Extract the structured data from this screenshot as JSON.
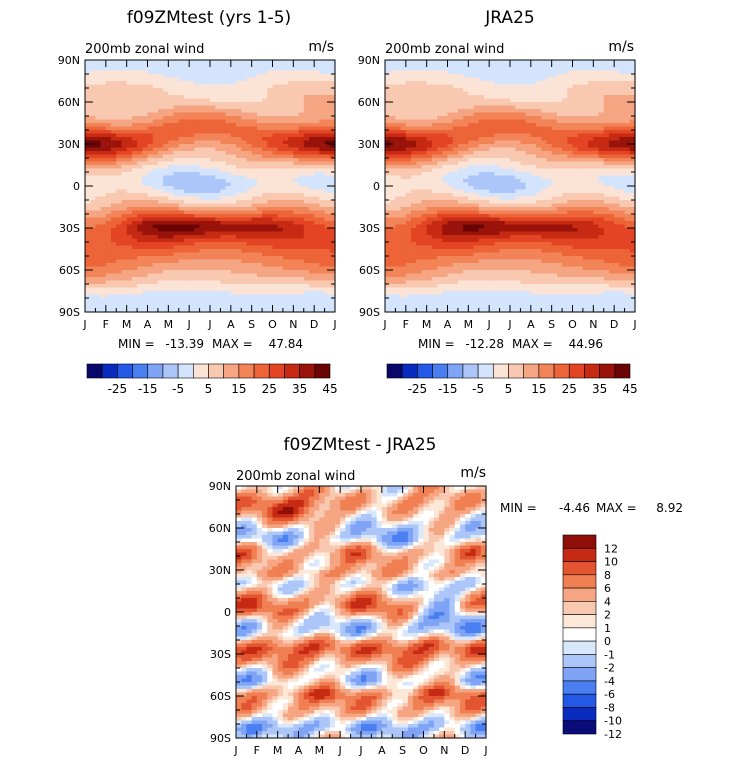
{
  "chart_data": [
    {
      "type": "heatmap",
      "title": "f09ZMtest (yrs 1-5)",
      "subtitle": "200mb zonal wind",
      "units": "m/s",
      "x_ticks": [
        "J",
        "F",
        "M",
        "A",
        "M",
        "J",
        "J",
        "A",
        "S",
        "O",
        "N",
        "D",
        "J"
      ],
      "y_ticks": [
        "90N",
        "60N",
        "30N",
        "0",
        "30S",
        "60S",
        "90S"
      ],
      "stats": {
        "min_label": "MIN =",
        "min": "-13.39",
        "max_label": "MAX =",
        "max": "47.84"
      },
      "levels": [
        -30,
        -25,
        -20,
        -15,
        -10,
        -5,
        0,
        5,
        10,
        15,
        20,
        25,
        30,
        35,
        40,
        45
      ],
      "colorbar_labels": [
        "-25",
        "-15",
        "-5",
        "5",
        "15",
        "25",
        "35",
        "45"
      ],
      "xlim": [
        0,
        12
      ],
      "ylim": [
        -90,
        90
      ],
      "grid": false,
      "colorbar_position": "bottom"
    },
    {
      "type": "heatmap",
      "title": "JRA25",
      "subtitle": "200mb zonal wind",
      "units": "m/s",
      "x_ticks": [
        "J",
        "F",
        "M",
        "A",
        "M",
        "J",
        "J",
        "A",
        "S",
        "O",
        "N",
        "D",
        "J"
      ],
      "y_ticks": [
        "90N",
        "60N",
        "30N",
        "0",
        "30S",
        "60S",
        "90S"
      ],
      "stats": {
        "min_label": "MIN =",
        "min": "-12.28",
        "max_label": "MAX =",
        "max": "44.96"
      },
      "levels": [
        -30,
        -25,
        -20,
        -15,
        -10,
        -5,
        0,
        5,
        10,
        15,
        20,
        25,
        30,
        35,
        40,
        45
      ],
      "colorbar_labels": [
        "-25",
        "-15",
        "-5",
        "5",
        "15",
        "25",
        "35",
        "45"
      ],
      "xlim": [
        0,
        12
      ],
      "ylim": [
        -90,
        90
      ],
      "grid": false,
      "colorbar_position": "bottom"
    },
    {
      "type": "heatmap",
      "title": "f09ZMtest - JRA25",
      "subtitle": "200mb zonal wind",
      "units": "m/s",
      "x_ticks": [
        "J",
        "F",
        "M",
        "A",
        "M",
        "J",
        "J",
        "A",
        "S",
        "O",
        "N",
        "D",
        "J"
      ],
      "y_ticks": [
        "90N",
        "60N",
        "30N",
        "0",
        "30S",
        "60S",
        "90S"
      ],
      "stats": {
        "min_label": "MIN =",
        "min": "-4.46",
        "max_label": "MAX =",
        "max": "8.92"
      },
      "levels": [
        -12,
        -10,
        -8,
        -6,
        -4,
        -2,
        -1,
        0,
        1,
        2,
        4,
        6,
        8,
        10,
        12
      ],
      "colorbar_labels": [
        "12",
        "10",
        "8",
        "6",
        "4",
        "2",
        "1",
        "0",
        "-1",
        "-2",
        "-4",
        "-6",
        "-8",
        "-10",
        "-12"
      ],
      "xlim": [
        0,
        12
      ],
      "ylim": [
        -90,
        90
      ],
      "grid": false,
      "colorbar_position": "right"
    }
  ],
  "colors": {
    "mean_scale": [
      "#08086b",
      "#0a2bc0",
      "#2458e6",
      "#4a7ff2",
      "#7fa4f6",
      "#adc6fa",
      "#d4e4fc",
      "#fbe3d6",
      "#f9c8b0",
      "#f6a583",
      "#f28458",
      "#ec6437",
      "#e24424",
      "#c62a13",
      "#9a130a",
      "#6b0505"
    ],
    "diff_scale": [
      "#0b0b7a",
      "#0a2bc0",
      "#2458e6",
      "#4a7ff2",
      "#7fa4f6",
      "#adc6fa",
      "#d9e7fc",
      "#ffffff",
      "#fde8d8",
      "#f9c8b0",
      "#f6a583",
      "#f07f52",
      "#e35530",
      "#c62a13",
      "#8e0f07"
    ]
  }
}
